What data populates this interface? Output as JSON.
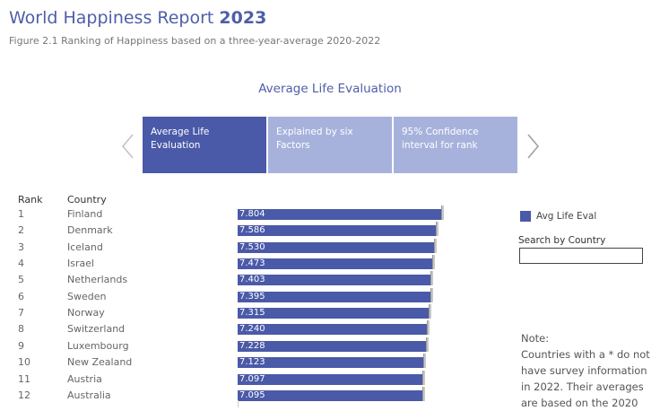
{
  "header": {
    "title": "World Happiness Report",
    "title_year": "2023",
    "subtitle": "Figure 2.1 Ranking of Happiness based on a three-year-average 2020-2022"
  },
  "section_title": "Average Life Evaluation",
  "tabs": [
    {
      "line1": "Average Life",
      "line2": "Evaluation",
      "active": true
    },
    {
      "line1": "Explained by six",
      "line2": "Factors",
      "active": false
    },
    {
      "line1": "95% Confidence",
      "line2": "interval for rank",
      "active": false
    }
  ],
  "table": {
    "rank_header": "Rank",
    "country_header": "Country",
    "rows": [
      {
        "rank": "1",
        "country": "Finland",
        "value": "7.804",
        "score": 7.804
      },
      {
        "rank": "2",
        "country": "Denmark",
        "value": "7.586",
        "score": 7.586
      },
      {
        "rank": "3",
        "country": "Iceland",
        "value": "7.530",
        "score": 7.53
      },
      {
        "rank": "4",
        "country": "Israel",
        "value": "7.473",
        "score": 7.473
      },
      {
        "rank": "5",
        "country": "Netherlands",
        "value": "7.403",
        "score": 7.403
      },
      {
        "rank": "6",
        "country": "Sweden",
        "value": "7.395",
        "score": 7.395
      },
      {
        "rank": "7",
        "country": "Norway",
        "value": "7.315",
        "score": 7.315
      },
      {
        "rank": "8",
        "country": "Switzerland",
        "value": "7.240",
        "score": 7.24
      },
      {
        "rank": "9",
        "country": "Luxembourg",
        "value": "7.228",
        "score": 7.228
      },
      {
        "rank": "10",
        "country": "New Zealand",
        "value": "7.123",
        "score": 7.123
      },
      {
        "rank": "11",
        "country": "Austria",
        "value": "7.097",
        "score": 7.097
      },
      {
        "rank": "12",
        "country": "Australia",
        "value": "7.095",
        "score": 7.095
      }
    ]
  },
  "legend": {
    "label": "Avg Life Eval",
    "color": "#4a5aa8"
  },
  "search": {
    "label": "Search by Country",
    "value": "",
    "placeholder": ""
  },
  "note": {
    "title": "Note:",
    "text": "Countries with a * do not have survey information in 2022. Their averages are based on the 2020"
  }
}
